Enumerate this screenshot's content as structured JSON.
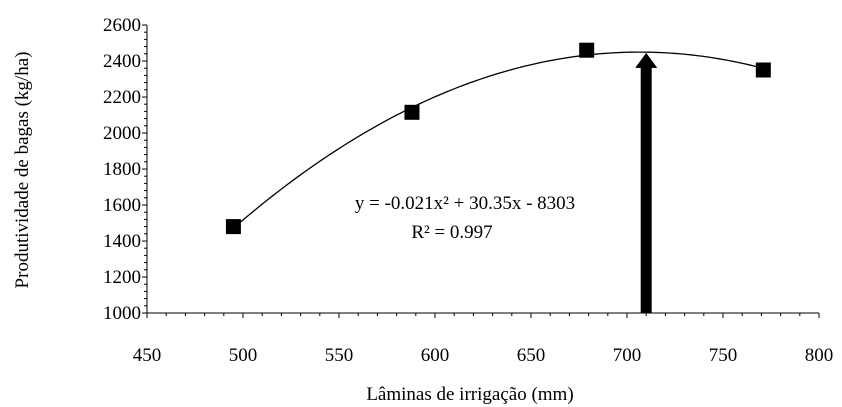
{
  "chart_data": {
    "type": "scatter",
    "xlabel": "Lâminas de irrigação (mm)",
    "ylabel": "Produtividade de bagas (kg/ha)",
    "xlim": [
      450,
      800
    ],
    "ylim": [
      1000,
      2600
    ],
    "x_ticks": [
      450,
      500,
      550,
      600,
      650,
      700,
      750,
      800
    ],
    "y_ticks": [
      1000,
      1200,
      1400,
      1600,
      1800,
      2000,
      2200,
      2400,
      2600
    ],
    "x_tick_labels": [
      "450",
      "500",
      "550",
      "600",
      "650",
      "700",
      "750",
      "800"
    ],
    "y_tick_labels": [
      "1000",
      "1200",
      "1400",
      "1600",
      "1800",
      "2000",
      "2200",
      "2400",
      "2600"
    ],
    "grid": false,
    "series": [
      {
        "marker": "square",
        "color": "#000000",
        "points": [
          {
            "x": 495,
            "y": 1480
          },
          {
            "x": 588,
            "y": 2115
          },
          {
            "x": 679,
            "y": 2460
          },
          {
            "x": 771,
            "y": 2350
          }
        ]
      }
    ],
    "trendline": {
      "type": "polynomial",
      "coefficients": {
        "a": -0.021,
        "b": 30.35,
        "c": -8303
      },
      "x_range": [
        495,
        771
      ],
      "equation_label": "y = -0.021x² + 30.35x - 8303",
      "r2_label": "R² = 0.997"
    },
    "annotations": [
      {
        "type": "arrow",
        "x": 710,
        "y_from": 1000,
        "y_to": 2445,
        "color": "#000000"
      }
    ]
  }
}
